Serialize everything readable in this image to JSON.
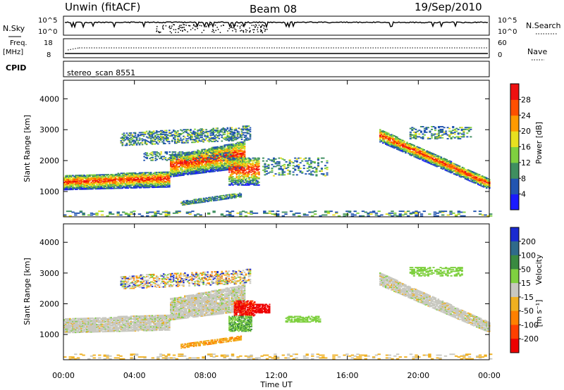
{
  "header": {
    "radar": "Unwin (fitACF)",
    "beam": "Beam 08",
    "date": "19/Sep/2010"
  },
  "top_panels": {
    "nsky_label": "N.Sky",
    "nsearch_label": "N.Search",
    "noise_tick_top": "10^5",
    "noise_tick_bottom": "10^0",
    "freq_label": "Freq.",
    "freq_unit": "[MHz]",
    "freq_tick_top": "18",
    "freq_tick_bottom": "8",
    "nave_label": "Nave",
    "nave_tick_top": "60",
    "nave_tick_bottom": "0",
    "cpid_label": "CPID",
    "cpid_value": "stereo_scan 8551"
  },
  "chart_data": [
    {
      "type": "heatmap",
      "name": "power",
      "ylabel": "Slant Range [km]",
      "xlabel": "Time UT",
      "x_ticks": [
        "00:00",
        "04:00",
        "08:00",
        "12:00",
        "16:00",
        "20:00",
        "00:00"
      ],
      "y_ticks": [
        1000,
        2000,
        3000,
        4000
      ],
      "ylim": [
        180,
        4600
      ],
      "xlim_hours": [
        0,
        24
      ],
      "colorbar_label": "Power [dB]",
      "colorbar_ticks": [
        4,
        8,
        12,
        16,
        20,
        24,
        28
      ],
      "colorbar_colors": [
        "#1a1aff",
        "#2255b0",
        "#3f8f60",
        "#7fd040",
        "#e8e020",
        "#ff9a00",
        "#ff5000",
        "#ee1010"
      ]
    },
    {
      "type": "heatmap",
      "name": "velocity",
      "ylabel": "Slant Range [km]",
      "xlabel": "Time UT",
      "x_ticks": [
        "00:00",
        "04:00",
        "08:00",
        "12:00",
        "16:00",
        "20:00",
        "00:00"
      ],
      "y_ticks": [
        1000,
        2000,
        3000,
        4000
      ],
      "ylim": [
        180,
        4600
      ],
      "xlim_hours": [
        0,
        24
      ],
      "colorbar_label": "Velocity",
      "colorbar_unit": "[m s⁻¹]",
      "colorbar_ticks": [
        200,
        100,
        50,
        15,
        -15,
        -50,
        -100,
        -200
      ],
      "colorbar_colors": [
        "#1a2ad0",
        "#2f6a8a",
        "#3a8a40",
        "#7fd040",
        "#c8c8c0",
        "#f0b020",
        "#ff8000",
        "#ff4000",
        "#ee0000"
      ]
    }
  ]
}
